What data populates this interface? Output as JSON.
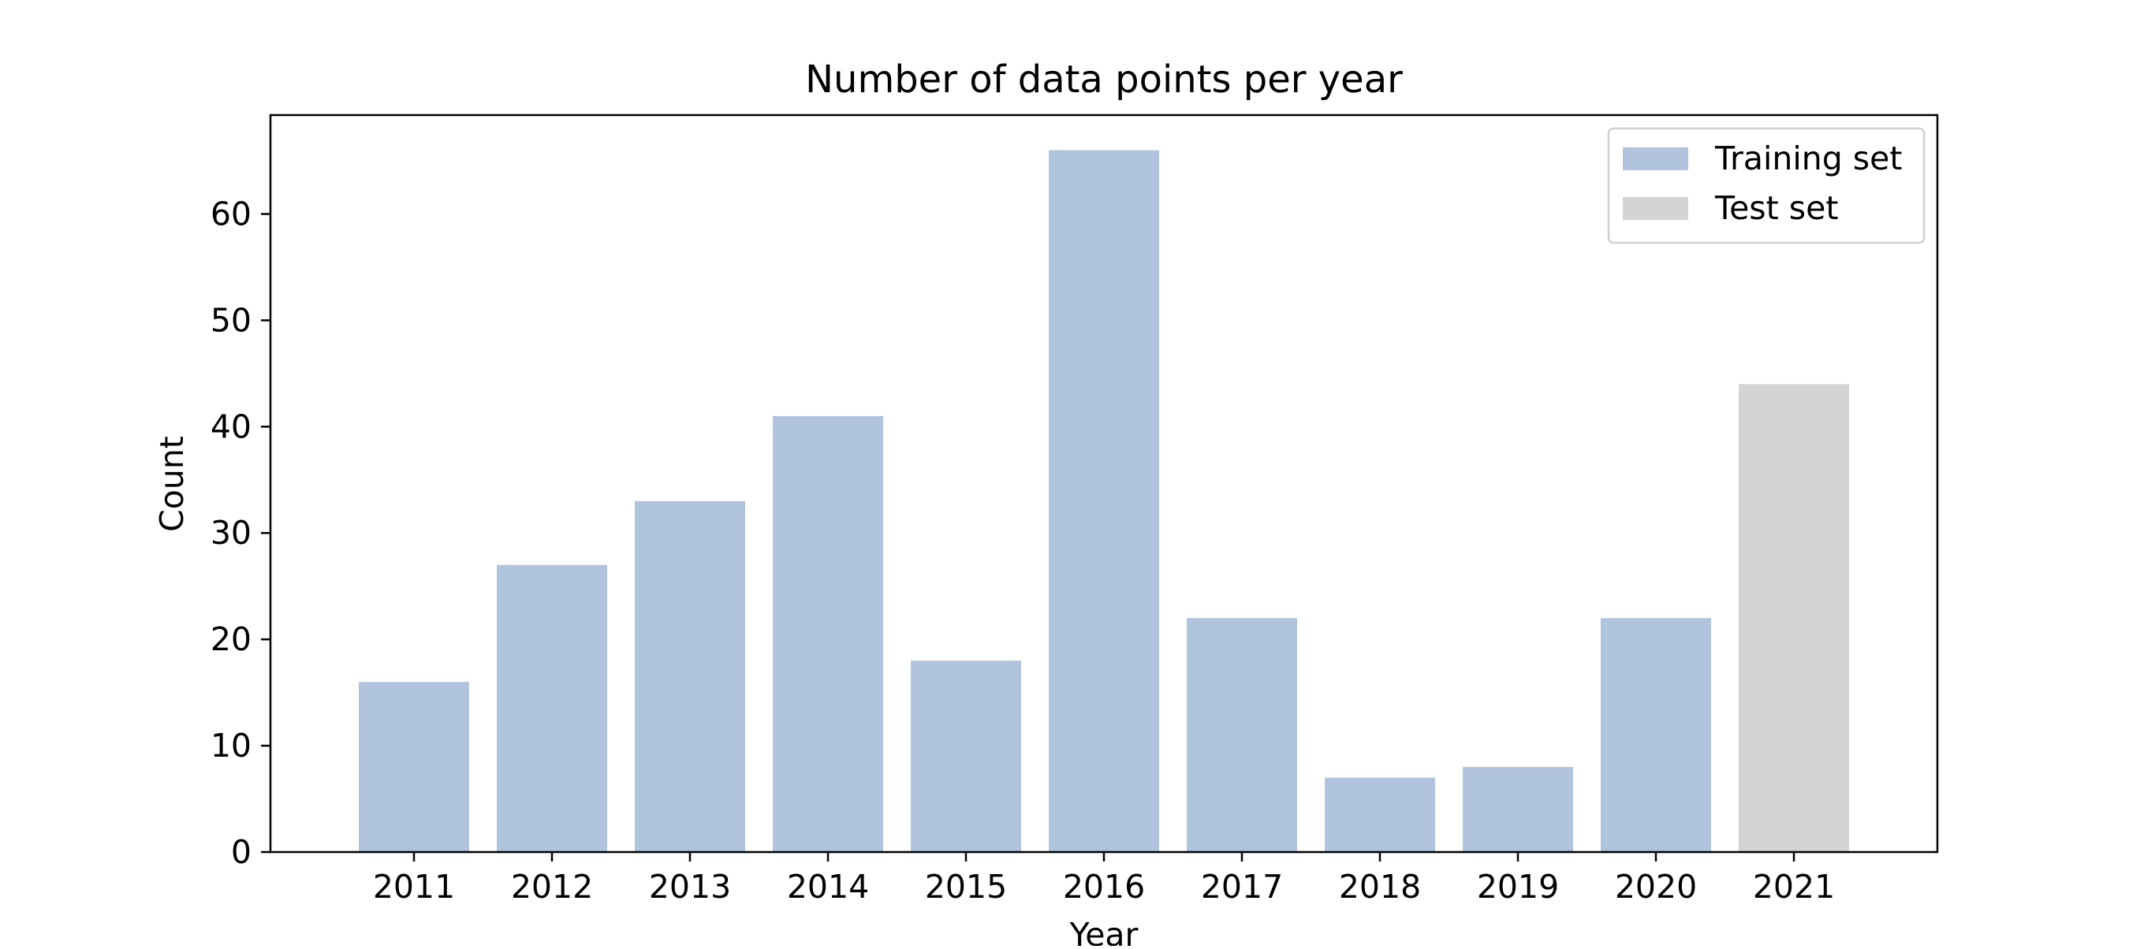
{
  "chart_data": {
    "type": "bar",
    "title": "Number of data points per year",
    "xlabel": "Year",
    "ylabel": "Count",
    "categories": [
      "2011",
      "2012",
      "2013",
      "2014",
      "2015",
      "2016",
      "2017",
      "2018",
      "2019",
      "2020",
      "2021"
    ],
    "series": [
      {
        "name": "Training set",
        "color": "#b0c4de",
        "values": [
          16,
          27,
          33,
          41,
          18,
          66,
          22,
          7,
          8,
          22,
          null
        ]
      },
      {
        "name": "Test set",
        "color": "#d3d3d3",
        "values": [
          null,
          null,
          null,
          null,
          null,
          null,
          null,
          null,
          null,
          null,
          44
        ]
      }
    ],
    "ylim": [
      0,
      69.3
    ],
    "yticks": [
      0,
      10,
      20,
      30,
      40,
      50,
      60
    ],
    "grid": false,
    "legend_position": "top-right"
  }
}
